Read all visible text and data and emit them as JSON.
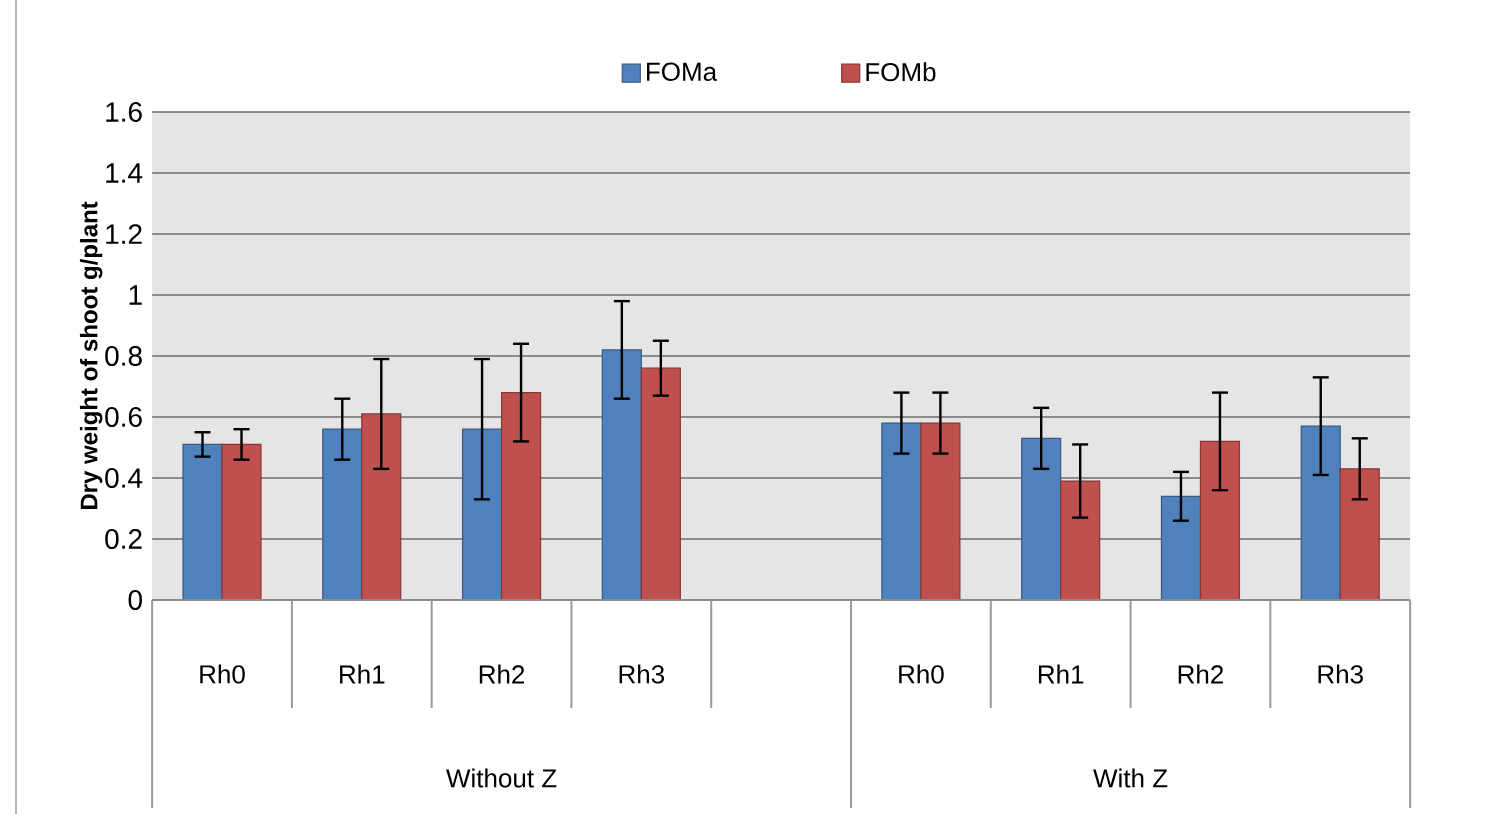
{
  "chart_data": {
    "type": "bar",
    "ylabel": "Dry weight of shoot  g/plant",
    "categories": [
      "Rh0",
      "Rh1",
      "Rh2",
      "Rh3",
      null,
      "Rh0",
      "Rh1",
      "Rh2",
      "Rh3"
    ],
    "series": [
      {
        "name": "FOMa",
        "color": "#4f81bd",
        "values": [
          0.51,
          0.56,
          0.56,
          0.82,
          null,
          0.58,
          0.53,
          0.34,
          0.57
        ],
        "errors": [
          0.04,
          0.1,
          0.23,
          0.16,
          null,
          0.1,
          0.1,
          0.08,
          0.16
        ]
      },
      {
        "name": "FOMb",
        "color": "#c0504d",
        "values": [
          0.51,
          0.61,
          0.68,
          0.76,
          null,
          0.58,
          0.39,
          0.52,
          0.43
        ],
        "errors": [
          0.05,
          0.18,
          0.16,
          0.09,
          null,
          0.1,
          0.12,
          0.16,
          0.1
        ]
      }
    ],
    "ylim": [
      0,
      1.6
    ],
    "yticks": [
      0,
      0.2,
      0.4,
      0.6,
      0.8,
      1,
      1.2,
      1.4,
      1.6
    ],
    "grid": "y",
    "legend": "top",
    "annotations": [
      "Without Z",
      "With Z"
    ]
  }
}
